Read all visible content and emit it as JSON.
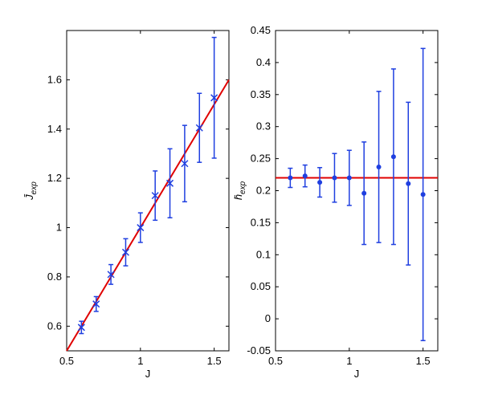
{
  "chart_data": [
    {
      "type": "errorbar",
      "marker": "x",
      "xlabel": "J",
      "ylabel": {
        "text": "J̄",
        "subscript": "exp"
      },
      "xlim": [
        0.5,
        1.6
      ],
      "ylim": [
        0.5,
        1.8
      ],
      "xticks": [
        0.5,
        1,
        1.5
      ],
      "yticks": [
        0.6,
        0.8,
        1,
        1.2,
        1.4,
        1.6
      ],
      "x": [
        0.6,
        0.7,
        0.8,
        0.9,
        1.0,
        1.1,
        1.2,
        1.3,
        1.4,
        1.5
      ],
      "series": [
        {
          "color": "#1f3fe0",
          "values": [
            0.595,
            0.69,
            0.81,
            0.9,
            1.0,
            1.13,
            1.18,
            1.26,
            1.405,
            1.527
          ],
          "errors": [
            0.025,
            0.03,
            0.04,
            0.055,
            0.06,
            0.1,
            0.14,
            0.155,
            0.14,
            0.245
          ]
        }
      ],
      "fit_line": {
        "color": "#e00000",
        "x": [
          0.5,
          1.6
        ],
        "y": [
          0.5,
          1.6
        ]
      }
    },
    {
      "type": "errorbar",
      "marker": "o",
      "xlabel": "J",
      "ylabel": {
        "text": "h̄",
        "subscript": "exp"
      },
      "xlim": [
        0.5,
        1.6
      ],
      "ylim": [
        -0.05,
        0.45
      ],
      "xticks": [
        0.5,
        1,
        1.5
      ],
      "yticks": [
        -0.05,
        0,
        0.05,
        0.1,
        0.15,
        0.2,
        0.25,
        0.3,
        0.35,
        0.4,
        0.45
      ],
      "x": [
        0.6,
        0.7,
        0.8,
        0.9,
        1.0,
        1.1,
        1.2,
        1.3,
        1.4,
        1.5
      ],
      "series": [
        {
          "color": "#1f3fe0",
          "values": [
            0.22,
            0.223,
            0.213,
            0.22,
            0.22,
            0.196,
            0.237,
            0.253,
            0.211,
            0.194
          ],
          "errors": [
            0.015,
            0.017,
            0.023,
            0.038,
            0.043,
            0.08,
            0.118,
            0.137,
            0.127,
            0.228
          ]
        }
      ],
      "fit_line": {
        "color": "#e00000",
        "x": [
          0.5,
          1.6
        ],
        "y": [
          0.22,
          0.22
        ]
      }
    }
  ]
}
